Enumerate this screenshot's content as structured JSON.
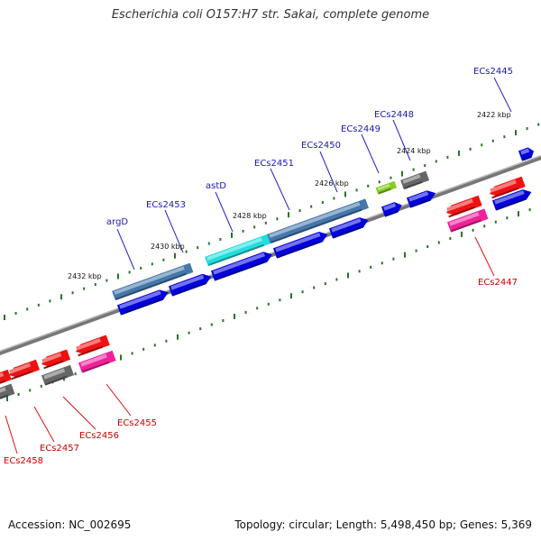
{
  "title": "Escherichia coli O157:H7 str. Sakai, complete genome",
  "footer": {
    "accession": "Accession: NC_002695",
    "summary": "Topology: circular; Length: 5,498,450 bp; Genes: 5,369"
  },
  "colors": {
    "forward_gene": "#0000dd",
    "reverse_gene": "#ee1111",
    "pink_gene": "#ee2299",
    "grey_gene": "#666666",
    "highlight_steel": "#4477aa",
    "highlight_cyan": "#22dddd",
    "tick_green": "#227722",
    "backbone": "#777777"
  },
  "scale_ticks": [
    "2422 kbp",
    "2424 kbp",
    "2426 kbp",
    "2428 kbp",
    "2430 kbp",
    "2432 kbp"
  ],
  "forward_labels": [
    "ECs2445",
    "ECs2448",
    "ECs2449",
    "ECs2450",
    "ECs2451",
    "astD",
    "ECs2453",
    "argD"
  ],
  "reverse_labels": [
    "ECs2447",
    "ECs2455",
    "ECs2456",
    "ECs2457",
    "ECs2458"
  ]
}
